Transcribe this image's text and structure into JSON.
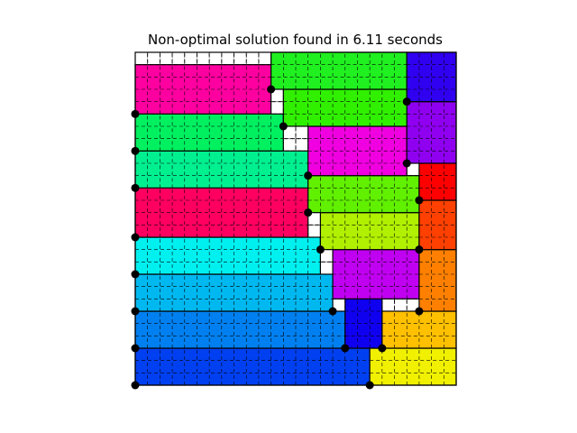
{
  "chart_data": {
    "type": "heatmap",
    "title": "Non-optimal solution found in 6.11 seconds",
    "grid": true,
    "xlim": [
      0,
      26
    ],
    "ylim": [
      0,
      27
    ],
    "rectangles": [
      {
        "x": 0,
        "y": 0,
        "w": 19,
        "h": 3,
        "color": "#0040f0"
      },
      {
        "x": 19,
        "y": 0,
        "w": 7,
        "h": 3,
        "color": "#f0f000"
      },
      {
        "x": 0,
        "y": 3,
        "w": 17,
        "h": 3,
        "color": "#0080f0"
      },
      {
        "x": 17,
        "y": 3,
        "w": 3,
        "h": 4,
        "color": "#1000f0"
      },
      {
        "x": 20,
        "y": 3,
        "w": 6,
        "h": 3,
        "color": "#ffc000"
      },
      {
        "x": 0,
        "y": 6,
        "w": 16,
        "h": 3,
        "color": "#00b8f0"
      },
      {
        "x": 0,
        "y": 9,
        "w": 15,
        "h": 3,
        "color": "#00f0f0"
      },
      {
        "x": 16,
        "y": 7,
        "w": 7,
        "h": 4,
        "color": "#c000f0"
      },
      {
        "x": 23,
        "y": 6,
        "w": 3,
        "h": 5,
        "color": "#ff8000"
      },
      {
        "x": 0,
        "y": 12,
        "w": 14,
        "h": 4,
        "color": "#ff0060"
      },
      {
        "x": 15,
        "y": 11,
        "w": 8,
        "h": 3,
        "color": "#b0f000"
      },
      {
        "x": 23,
        "y": 11,
        "w": 3,
        "h": 4,
        "color": "#ff4000"
      },
      {
        "x": 0,
        "y": 16,
        "w": 14,
        "h": 3,
        "color": "#00f090"
      },
      {
        "x": 14,
        "y": 14,
        "w": 9,
        "h": 3,
        "color": "#60f000"
      },
      {
        "x": 23,
        "y": 15,
        "w": 3,
        "h": 3,
        "color": "#ff0000"
      },
      {
        "x": 0,
        "y": 19,
        "w": 12,
        "h": 3,
        "color": "#00f060"
      },
      {
        "x": 14,
        "y": 17,
        "w": 8,
        "h": 4,
        "color": "#f000e0"
      },
      {
        "x": 22,
        "y": 18,
        "w": 4,
        "h": 5,
        "color": "#9000f0"
      },
      {
        "x": 0,
        "y": 22,
        "w": 11,
        "h": 4,
        "color": "#ff00a0"
      },
      {
        "x": 12,
        "y": 21,
        "w": 10,
        "h": 3,
        "color": "#30f000"
      },
      {
        "x": 11,
        "y": 24,
        "w": 11,
        "h": 3,
        "color": "#20f020"
      },
      {
        "x": 22,
        "y": 23,
        "w": 4,
        "h": 4,
        "color": "#3000f0"
      }
    ],
    "points": [
      [
        0,
        0
      ],
      [
        19,
        0
      ],
      [
        0,
        3
      ],
      [
        17,
        3
      ],
      [
        20,
        3
      ],
      [
        0,
        6
      ],
      [
        16,
        6
      ],
      [
        23,
        6
      ],
      [
        0,
        9
      ],
      [
        15,
        11
      ],
      [
        23,
        11
      ],
      [
        0,
        12
      ],
      [
        14,
        14
      ],
      [
        23,
        15
      ],
      [
        0,
        16
      ],
      [
        14,
        17
      ],
      [
        22,
        18
      ],
      [
        0,
        19
      ],
      [
        12,
        21
      ],
      [
        11,
        24
      ],
      [
        22,
        23
      ],
      [
        0,
        22
      ]
    ]
  }
}
